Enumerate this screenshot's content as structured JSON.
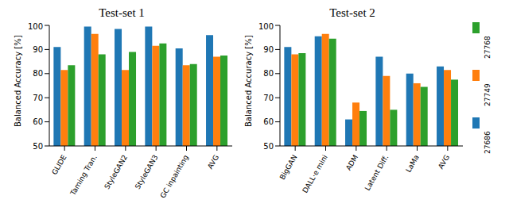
{
  "chart_data": [
    {
      "type": "bar",
      "title": "Test-set 1",
      "ylabel": "Balanced Accuracy [%]",
      "categories": [
        "GLIDE",
        "Taming Tran.",
        "StyleGAN2",
        "StyleGAN3",
        "GC inpainting",
        "AVG"
      ],
      "series": [
        {
          "name": "27686",
          "color": "#1f77b4",
          "values": [
            91,
            99.5,
            98.5,
            99.5,
            90.5,
            96
          ]
        },
        {
          "name": "27749",
          "color": "#ff7f0e",
          "values": [
            81.5,
            96.5,
            81.5,
            91.5,
            83.5,
            87
          ]
        },
        {
          "name": "27768",
          "color": "#2ca02c",
          "values": [
            83.5,
            88,
            89,
            92.5,
            84,
            87.5
          ]
        }
      ],
      "ylim": [
        50,
        100
      ],
      "yticks": [
        50,
        60,
        70,
        80,
        90,
        100
      ],
      "grid": false,
      "legend": "right"
    },
    {
      "type": "bar",
      "title": "Test-set 2",
      "ylabel": "Balanced Accuracy [%]",
      "categories": [
        "BigGAN",
        "DALL·e mini",
        "ADM",
        "Latent Diff.",
        "LaMa",
        "AVG"
      ],
      "series": [
        {
          "name": "27686",
          "color": "#1f77b4",
          "values": [
            91,
            95.5,
            61,
            87,
            80,
            83
          ]
        },
        {
          "name": "27749",
          "color": "#ff7f0e",
          "values": [
            88,
            96.5,
            68,
            79,
            76,
            81.5
          ]
        },
        {
          "name": "27768",
          "color": "#2ca02c",
          "values": [
            88.5,
            94.5,
            64.5,
            65,
            74.5,
            77.5
          ]
        }
      ],
      "ylim": [
        50,
        100
      ],
      "yticks": [
        50,
        60,
        70,
        80,
        90,
        100
      ],
      "grid": false,
      "legend": "right"
    }
  ]
}
